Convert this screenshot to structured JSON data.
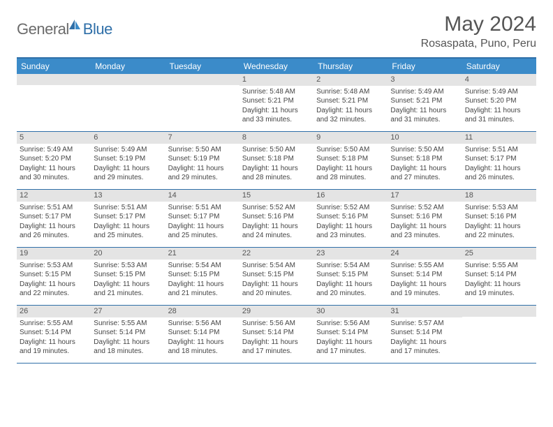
{
  "brand": {
    "part1": "General",
    "part2": "Blue"
  },
  "title": "May 2024",
  "location": "Rosaspata, Puno, Peru",
  "colors": {
    "header_bar": "#3b8bc9",
    "border": "#2f6fa8",
    "daynum_bg": "#e4e4e4",
    "text": "#454545"
  },
  "dayNames": [
    "Sunday",
    "Monday",
    "Tuesday",
    "Wednesday",
    "Thursday",
    "Friday",
    "Saturday"
  ],
  "weeks": [
    [
      {
        "n": "",
        "sr": "",
        "ss": "",
        "dl": ""
      },
      {
        "n": "",
        "sr": "",
        "ss": "",
        "dl": ""
      },
      {
        "n": "",
        "sr": "",
        "ss": "",
        "dl": ""
      },
      {
        "n": "1",
        "sr": "Sunrise: 5:48 AM",
        "ss": "Sunset: 5:21 PM",
        "dl": "Daylight: 11 hours and 33 minutes."
      },
      {
        "n": "2",
        "sr": "Sunrise: 5:48 AM",
        "ss": "Sunset: 5:21 PM",
        "dl": "Daylight: 11 hours and 32 minutes."
      },
      {
        "n": "3",
        "sr": "Sunrise: 5:49 AM",
        "ss": "Sunset: 5:21 PM",
        "dl": "Daylight: 11 hours and 31 minutes."
      },
      {
        "n": "4",
        "sr": "Sunrise: 5:49 AM",
        "ss": "Sunset: 5:20 PM",
        "dl": "Daylight: 11 hours and 31 minutes."
      }
    ],
    [
      {
        "n": "5",
        "sr": "Sunrise: 5:49 AM",
        "ss": "Sunset: 5:20 PM",
        "dl": "Daylight: 11 hours and 30 minutes."
      },
      {
        "n": "6",
        "sr": "Sunrise: 5:49 AM",
        "ss": "Sunset: 5:19 PM",
        "dl": "Daylight: 11 hours and 29 minutes."
      },
      {
        "n": "7",
        "sr": "Sunrise: 5:50 AM",
        "ss": "Sunset: 5:19 PM",
        "dl": "Daylight: 11 hours and 29 minutes."
      },
      {
        "n": "8",
        "sr": "Sunrise: 5:50 AM",
        "ss": "Sunset: 5:18 PM",
        "dl": "Daylight: 11 hours and 28 minutes."
      },
      {
        "n": "9",
        "sr": "Sunrise: 5:50 AM",
        "ss": "Sunset: 5:18 PM",
        "dl": "Daylight: 11 hours and 28 minutes."
      },
      {
        "n": "10",
        "sr": "Sunrise: 5:50 AM",
        "ss": "Sunset: 5:18 PM",
        "dl": "Daylight: 11 hours and 27 minutes."
      },
      {
        "n": "11",
        "sr": "Sunrise: 5:51 AM",
        "ss": "Sunset: 5:17 PM",
        "dl": "Daylight: 11 hours and 26 minutes."
      }
    ],
    [
      {
        "n": "12",
        "sr": "Sunrise: 5:51 AM",
        "ss": "Sunset: 5:17 PM",
        "dl": "Daylight: 11 hours and 26 minutes."
      },
      {
        "n": "13",
        "sr": "Sunrise: 5:51 AM",
        "ss": "Sunset: 5:17 PM",
        "dl": "Daylight: 11 hours and 25 minutes."
      },
      {
        "n": "14",
        "sr": "Sunrise: 5:51 AM",
        "ss": "Sunset: 5:17 PM",
        "dl": "Daylight: 11 hours and 25 minutes."
      },
      {
        "n": "15",
        "sr": "Sunrise: 5:52 AM",
        "ss": "Sunset: 5:16 PM",
        "dl": "Daylight: 11 hours and 24 minutes."
      },
      {
        "n": "16",
        "sr": "Sunrise: 5:52 AM",
        "ss": "Sunset: 5:16 PM",
        "dl": "Daylight: 11 hours and 23 minutes."
      },
      {
        "n": "17",
        "sr": "Sunrise: 5:52 AM",
        "ss": "Sunset: 5:16 PM",
        "dl": "Daylight: 11 hours and 23 minutes."
      },
      {
        "n": "18",
        "sr": "Sunrise: 5:53 AM",
        "ss": "Sunset: 5:16 PM",
        "dl": "Daylight: 11 hours and 22 minutes."
      }
    ],
    [
      {
        "n": "19",
        "sr": "Sunrise: 5:53 AM",
        "ss": "Sunset: 5:15 PM",
        "dl": "Daylight: 11 hours and 22 minutes."
      },
      {
        "n": "20",
        "sr": "Sunrise: 5:53 AM",
        "ss": "Sunset: 5:15 PM",
        "dl": "Daylight: 11 hours and 21 minutes."
      },
      {
        "n": "21",
        "sr": "Sunrise: 5:54 AM",
        "ss": "Sunset: 5:15 PM",
        "dl": "Daylight: 11 hours and 21 minutes."
      },
      {
        "n": "22",
        "sr": "Sunrise: 5:54 AM",
        "ss": "Sunset: 5:15 PM",
        "dl": "Daylight: 11 hours and 20 minutes."
      },
      {
        "n": "23",
        "sr": "Sunrise: 5:54 AM",
        "ss": "Sunset: 5:15 PM",
        "dl": "Daylight: 11 hours and 20 minutes."
      },
      {
        "n": "24",
        "sr": "Sunrise: 5:55 AM",
        "ss": "Sunset: 5:14 PM",
        "dl": "Daylight: 11 hours and 19 minutes."
      },
      {
        "n": "25",
        "sr": "Sunrise: 5:55 AM",
        "ss": "Sunset: 5:14 PM",
        "dl": "Daylight: 11 hours and 19 minutes."
      }
    ],
    [
      {
        "n": "26",
        "sr": "Sunrise: 5:55 AM",
        "ss": "Sunset: 5:14 PM",
        "dl": "Daylight: 11 hours and 19 minutes."
      },
      {
        "n": "27",
        "sr": "Sunrise: 5:55 AM",
        "ss": "Sunset: 5:14 PM",
        "dl": "Daylight: 11 hours and 18 minutes."
      },
      {
        "n": "28",
        "sr": "Sunrise: 5:56 AM",
        "ss": "Sunset: 5:14 PM",
        "dl": "Daylight: 11 hours and 18 minutes."
      },
      {
        "n": "29",
        "sr": "Sunrise: 5:56 AM",
        "ss": "Sunset: 5:14 PM",
        "dl": "Daylight: 11 hours and 17 minutes."
      },
      {
        "n": "30",
        "sr": "Sunrise: 5:56 AM",
        "ss": "Sunset: 5:14 PM",
        "dl": "Daylight: 11 hours and 17 minutes."
      },
      {
        "n": "31",
        "sr": "Sunrise: 5:57 AM",
        "ss": "Sunset: 5:14 PM",
        "dl": "Daylight: 11 hours and 17 minutes."
      },
      {
        "n": "",
        "sr": "",
        "ss": "",
        "dl": ""
      }
    ]
  ]
}
